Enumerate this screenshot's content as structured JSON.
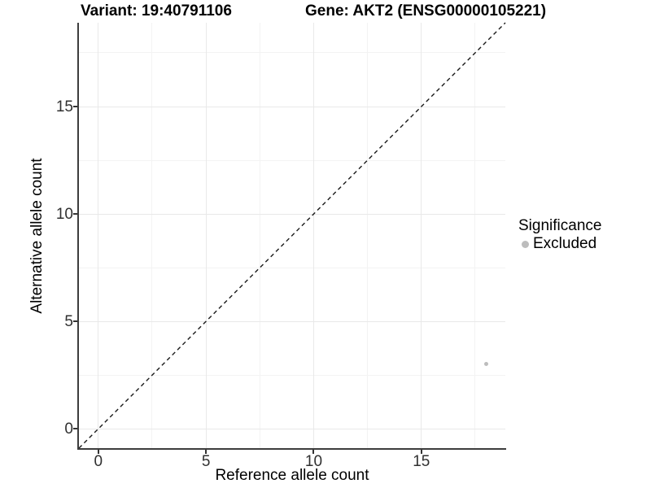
{
  "figure": {
    "titles": {
      "left": "Variant: 19:40791106",
      "right": "Gene: AKT2 (ENSG00000105221)"
    }
  },
  "chart_data": {
    "type": "scatter",
    "title": "Variant: 19:40791106   Gene: AKT2 (ENSG00000105221)",
    "xlabel": "Reference allele count",
    "ylabel": "Alternative allele count",
    "xlim": [
      -0.9,
      18.9
    ],
    "ylim": [
      -0.9,
      18.9
    ],
    "x_ticks": [
      0,
      5,
      10,
      15
    ],
    "y_ticks": [
      0,
      5,
      10,
      15
    ],
    "minor_gridlines": [
      2.5,
      7.5,
      12.5,
      17.5
    ],
    "grid": "major+minor, light gray on white",
    "reference_line": {
      "type": "identity",
      "equation": "y = x",
      "style": "dashed",
      "color": "#1a1a1a",
      "from": [
        -0.9,
        -0.9
      ],
      "to": [
        18.9,
        18.9
      ]
    },
    "series": [
      {
        "name": "Excluded",
        "color": "#bdbdbd",
        "points": [
          {
            "x": 18,
            "y": 3
          }
        ]
      }
    ],
    "legend": {
      "title": "Significance",
      "position": "right",
      "entries": [
        {
          "label": "Excluded",
          "color": "#bdbdbd"
        }
      ]
    }
  },
  "colors": {
    "background": "#ffffff",
    "axis_line": "#3d3d3d",
    "tick_mark": "#333333",
    "grid_major": "#e9e9e9",
    "grid_minor": "#f3f3f3",
    "point": "#bdbdbd",
    "dashed_line": "#1a1a1a"
  }
}
